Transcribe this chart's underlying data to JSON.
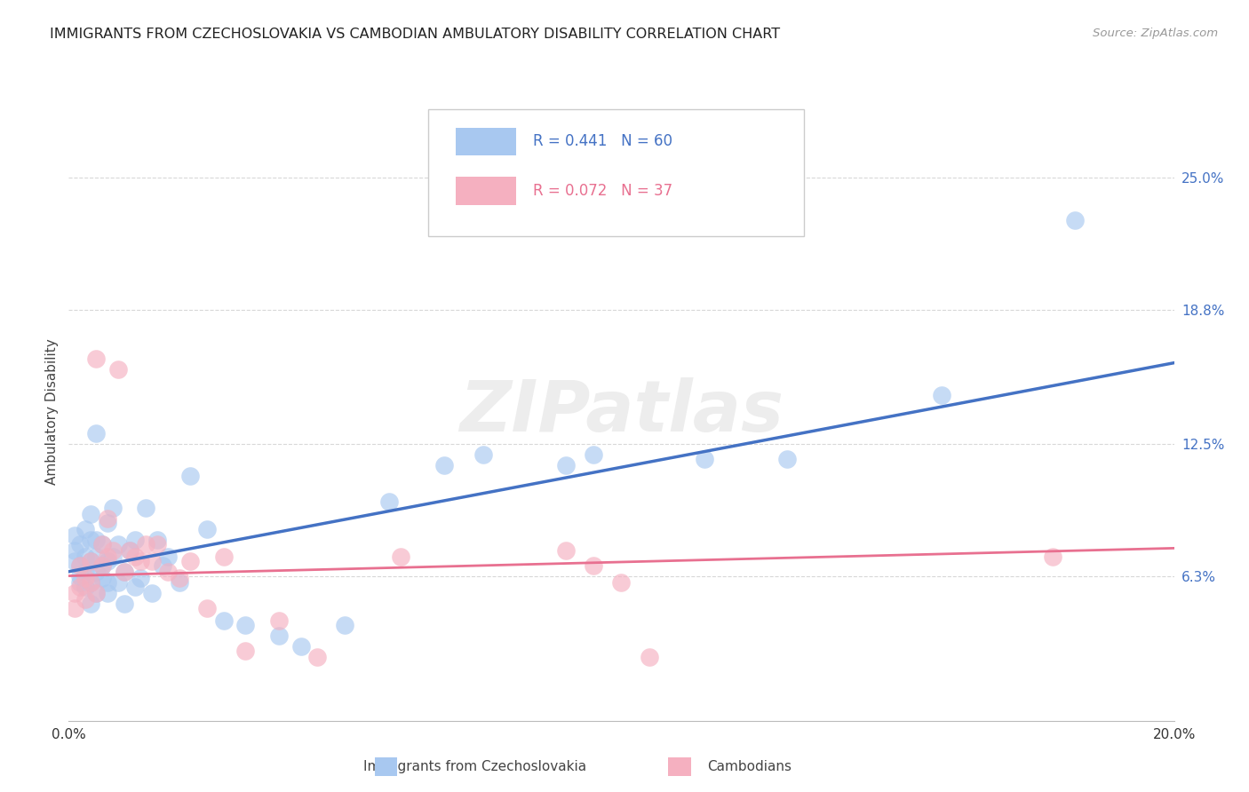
{
  "title": "IMMIGRANTS FROM CZECHOSLOVAKIA VS CAMBODIAN AMBULATORY DISABILITY CORRELATION CHART",
  "source": "Source: ZipAtlas.com",
  "ylabel": "Ambulatory Disability",
  "ytick_labels": [
    "6.3%",
    "12.5%",
    "18.8%",
    "25.0%"
  ],
  "ytick_values": [
    0.063,
    0.125,
    0.188,
    0.25
  ],
  "xmin": 0.0,
  "xmax": 0.2,
  "ymin": -0.005,
  "ymax": 0.285,
  "legend_blue_r": "R = 0.441",
  "legend_blue_n": "N = 60",
  "legend_pink_r": "R = 0.072",
  "legend_pink_n": "N = 37",
  "legend_blue_label": "Immigrants from Czechoslovakia",
  "legend_pink_label": "Cambodians",
  "blue_color": "#a8c8f0",
  "pink_color": "#f5b0c0",
  "trendline_blue": "#4472c4",
  "trendline_pink": "#e87090",
  "trendline_blue_x0": 0.0,
  "trendline_blue_y0": 0.065,
  "trendline_blue_x1": 0.2,
  "trendline_blue_y1": 0.163,
  "trendline_pink_x0": 0.0,
  "trendline_pink_y0": 0.063,
  "trendline_pink_x1": 0.2,
  "trendline_pink_y1": 0.076,
  "blue_points_x": [
    0.001,
    0.001,
    0.001,
    0.002,
    0.002,
    0.002,
    0.002,
    0.003,
    0.003,
    0.003,
    0.003,
    0.004,
    0.004,
    0.004,
    0.004,
    0.004,
    0.005,
    0.005,
    0.005,
    0.005,
    0.005,
    0.006,
    0.006,
    0.006,
    0.007,
    0.007,
    0.007,
    0.007,
    0.008,
    0.008,
    0.009,
    0.009,
    0.01,
    0.01,
    0.011,
    0.012,
    0.012,
    0.013,
    0.014,
    0.015,
    0.016,
    0.017,
    0.018,
    0.02,
    0.022,
    0.025,
    0.028,
    0.032,
    0.038,
    0.042,
    0.05,
    0.058,
    0.068,
    0.075,
    0.09,
    0.095,
    0.115,
    0.13,
    0.158,
    0.182
  ],
  "blue_points_y": [
    0.07,
    0.075,
    0.082,
    0.063,
    0.068,
    0.078,
    0.06,
    0.058,
    0.065,
    0.072,
    0.085,
    0.05,
    0.06,
    0.07,
    0.08,
    0.092,
    0.055,
    0.065,
    0.072,
    0.08,
    0.13,
    0.062,
    0.068,
    0.078,
    0.055,
    0.06,
    0.07,
    0.088,
    0.072,
    0.095,
    0.06,
    0.078,
    0.05,
    0.065,
    0.075,
    0.058,
    0.08,
    0.062,
    0.095,
    0.055,
    0.08,
    0.068,
    0.072,
    0.06,
    0.11,
    0.085,
    0.042,
    0.04,
    0.035,
    0.03,
    0.04,
    0.098,
    0.115,
    0.12,
    0.115,
    0.12,
    0.118,
    0.118,
    0.148,
    0.23
  ],
  "pink_points_x": [
    0.001,
    0.001,
    0.002,
    0.002,
    0.003,
    0.003,
    0.004,
    0.004,
    0.005,
    0.005,
    0.006,
    0.006,
    0.007,
    0.007,
    0.008,
    0.009,
    0.01,
    0.011,
    0.012,
    0.013,
    0.014,
    0.015,
    0.016,
    0.018,
    0.02,
    0.022,
    0.025,
    0.028,
    0.032,
    0.038,
    0.045,
    0.06,
    0.09,
    0.095,
    0.1,
    0.105,
    0.178
  ],
  "pink_points_y": [
    0.055,
    0.048,
    0.058,
    0.068,
    0.052,
    0.062,
    0.06,
    0.07,
    0.055,
    0.165,
    0.068,
    0.078,
    0.072,
    0.09,
    0.075,
    0.16,
    0.065,
    0.075,
    0.072,
    0.07,
    0.078,
    0.07,
    0.078,
    0.065,
    0.062,
    0.07,
    0.048,
    0.072,
    0.028,
    0.042,
    0.025,
    0.072,
    0.075,
    0.068,
    0.06,
    0.025,
    0.072
  ],
  "watermark": "ZIPatlas",
  "background_color": "#ffffff",
  "grid_color": "#d8d8d8"
}
